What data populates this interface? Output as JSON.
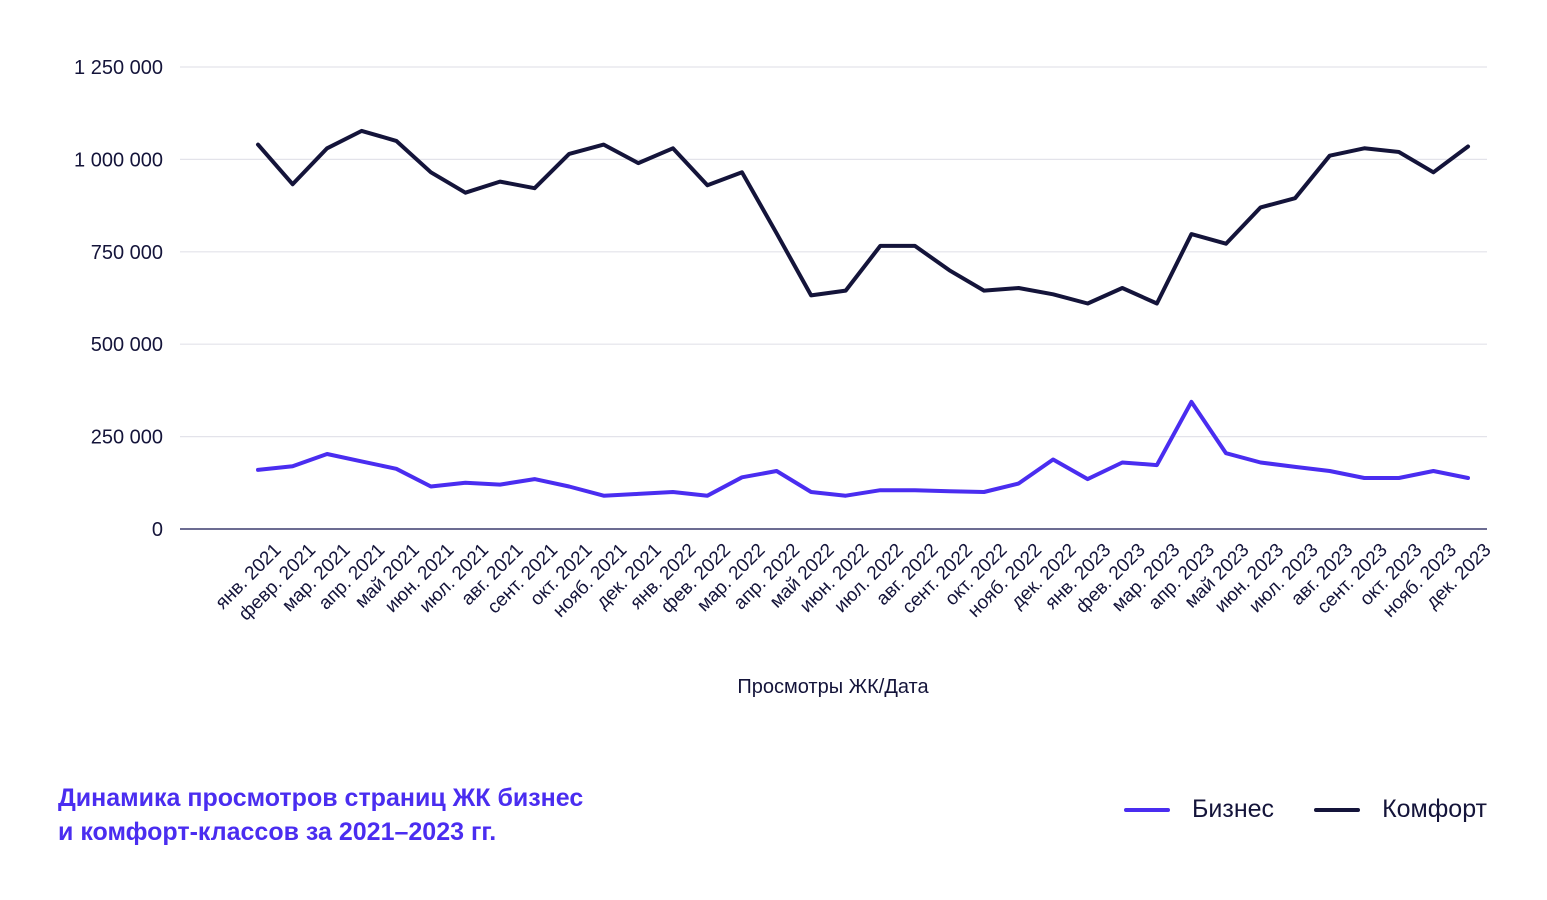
{
  "chart_data": {
    "type": "line",
    "title": "Динамика просмотров страниц ЖК бизнес и комфорт-классов за 2021–2023 гг.",
    "title_lines": [
      "Динамика просмотров страниц ЖК бизнес",
      "и комфорт-классов за 2021–2023 гг."
    ],
    "xlabel": "Просмотры ЖК/Дата",
    "ylabel": "",
    "ylim": [
      0,
      1250000
    ],
    "yticks": [
      0,
      250000,
      500000,
      750000,
      1000000,
      1250000
    ],
    "ytick_labels": [
      "0",
      "250 000",
      "500 000",
      "750 000",
      "1 000 000",
      "1 250 000"
    ],
    "grid": true,
    "legend_position": "bottom-right",
    "categories": [
      "янв. 2021",
      "февр. 2021",
      "мар. 2021",
      "апр. 2021",
      "май 2021",
      "июн. 2021",
      "июл. 2021",
      "авг. 2021",
      "сент. 2021",
      "окт. 2021",
      "нояб. 2021",
      "дек. 2021",
      "янв. 2022",
      "фев. 2022",
      "мар. 2022",
      "апр. 2022",
      "май 2022",
      "июн. 2022",
      "июл. 2022",
      "авг. 2022",
      "сент. 2022",
      "окт. 2022",
      "нояб. 2022",
      "дек. 2022",
      "янв. 2023",
      "фев. 2023",
      "мар. 2023",
      "апр. 2023",
      "май 2023",
      "июн. 2023",
      "июл. 2023",
      "авг. 2023",
      "сент. 2023",
      "окт. 2023",
      "нояб. 2023",
      "дек. 2023"
    ],
    "series": [
      {
        "name": "Бизнес",
        "color": "#4a2df0",
        "values": [
          160000,
          170000,
          203000,
          183000,
          163000,
          115000,
          125000,
          120000,
          135000,
          115000,
          90000,
          95000,
          100000,
          90000,
          140000,
          157000,
          100000,
          90000,
          105000,
          105000,
          102000,
          100000,
          123000,
          188000,
          135000,
          180000,
          173000,
          344000,
          205000,
          180000,
          168000,
          157000,
          138000,
          138000,
          157000,
          138000
        ]
      },
      {
        "name": "Комфорт",
        "color": "#14143a",
        "values": [
          1040000,
          933000,
          1030000,
          1077000,
          1050000,
          965000,
          910000,
          940000,
          922000,
          1015000,
          1040000,
          990000,
          1030000,
          930000,
          965000,
          800000,
          632000,
          645000,
          766000,
          766000,
          700000,
          645000,
          652000,
          635000,
          610000,
          652000,
          610000,
          798000,
          772000,
          870000,
          895000,
          1010000,
          1030000,
          1020000,
          965000,
          1035000
        ]
      }
    ]
  }
}
